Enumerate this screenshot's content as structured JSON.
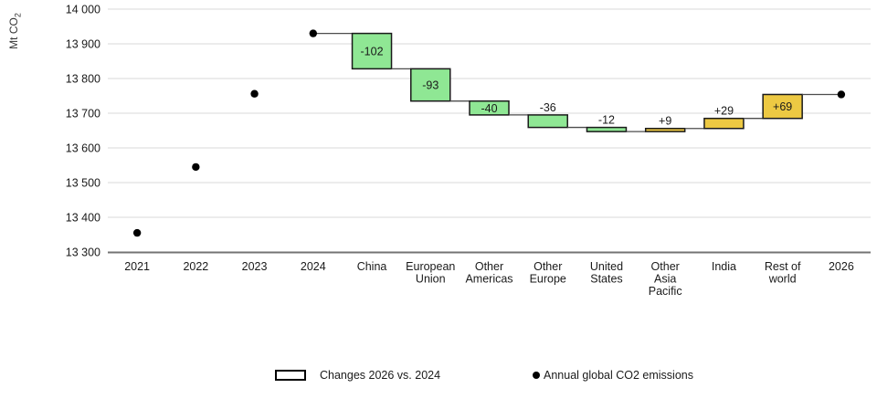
{
  "chart_data": {
    "type": "waterfall",
    "ylabel": "Mt CO2",
    "ylabel_parts": [
      "Mt CO",
      "2"
    ],
    "yaxis": {
      "min": 13300,
      "max": 14000,
      "step": 100,
      "tick_labels": [
        "13 300",
        "13 400",
        "13 500",
        "13 600",
        "13 700",
        "13 800",
        "13 900",
        "14 000"
      ]
    },
    "x_ticks": [
      {
        "label": "2021",
        "lines": [
          "2021"
        ]
      },
      {
        "label": "2022",
        "lines": [
          "2022"
        ]
      },
      {
        "label": "2023",
        "lines": [
          "2023"
        ]
      },
      {
        "label": "2024",
        "lines": [
          "2024"
        ]
      },
      {
        "label": "China",
        "lines": [
          "China"
        ]
      },
      {
        "label": "European Union",
        "lines": [
          "European",
          "Union"
        ]
      },
      {
        "label": "Other Americas",
        "lines": [
          "Other",
          "Americas"
        ]
      },
      {
        "label": "Other Europe",
        "lines": [
          "Other",
          "Europe"
        ]
      },
      {
        "label": "United States",
        "lines": [
          "United",
          "States"
        ]
      },
      {
        "label": "Other Asia Pacific",
        "lines": [
          "Other",
          "Asia",
          "Pacific"
        ]
      },
      {
        "label": "India",
        "lines": [
          "India"
        ]
      },
      {
        "label": "Rest of world",
        "lines": [
          "Rest of",
          "world"
        ]
      },
      {
        "label": "2026",
        "lines": [
          "2026"
        ]
      }
    ],
    "annual_dots": [
      {
        "category": "2021",
        "value": 13355
      },
      {
        "category": "2022",
        "value": 13545
      },
      {
        "category": "2023",
        "value": 13756
      },
      {
        "category": "2024",
        "value": 13930
      },
      {
        "category": "2026",
        "value": 13754
      }
    ],
    "waterfall_start": {
      "category": "2024",
      "value": 13930
    },
    "waterfall_end_category": "2026",
    "changes": [
      {
        "category": "China",
        "value": -102,
        "label": "-102",
        "label_inside": true
      },
      {
        "category": "European Union",
        "value": -93,
        "label": "-93",
        "label_inside": true
      },
      {
        "category": "Other Americas",
        "value": -40,
        "label": "-40",
        "label_inside": true
      },
      {
        "category": "Other Europe",
        "value": -36,
        "label": "-36",
        "label_inside": false
      },
      {
        "category": "United States",
        "value": -12,
        "label": "-12",
        "label_inside": false
      },
      {
        "category": "Other Asia Pacific",
        "value": 9,
        "label": "+9",
        "label_inside": false
      },
      {
        "category": "India",
        "value": 29,
        "label": "+29",
        "label_inside": false
      },
      {
        "category": "Rest of world",
        "value": 69,
        "label": "+69",
        "label_inside": true
      }
    ],
    "colors": {
      "decrease_fill": "#8fe794",
      "increase_fill": "#edc943",
      "bar_border": "#1a1a1a",
      "connector": "#4d4d4d",
      "dot": "#000000",
      "gridline": "#d9d9d9",
      "axis_line": "#737373",
      "text": "#1a1a1a"
    },
    "legend": {
      "box_label": "Changes 2026 vs. 2024",
      "dot_label": "Annual global CO2 emissions"
    }
  }
}
